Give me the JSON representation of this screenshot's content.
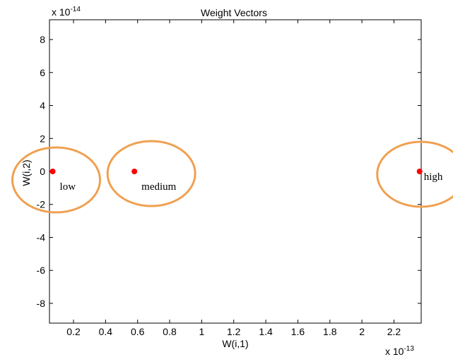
{
  "chart_data": {
    "type": "scatter",
    "title": "Weight Vectors",
    "xlabel": "W(i,1)",
    "ylabel": "W(i,2)",
    "x_exponent": "x 10",
    "x_exponent_power": "-13",
    "y_exponent": "x 10",
    "y_exponent_power": "-14",
    "xlim": [
      0.05,
      2.37
    ],
    "ylim": [
      -9.2,
      9.2
    ],
    "xticks": [
      "0.2",
      "0.4",
      "0.6",
      "0.8",
      "1",
      "1.2",
      "1.4",
      "1.6",
      "1.8",
      "2",
      "2.2"
    ],
    "yticks": [
      "8",
      "6",
      "4",
      "2",
      "0",
      "-2",
      "-4",
      "-6",
      "-8"
    ],
    "points": [
      {
        "label": "low",
        "x": 0.07,
        "y": 0
      },
      {
        "label": "medium",
        "x": 0.58,
        "y": 0
      },
      {
        "label": "high",
        "x": 2.36,
        "y": 0
      }
    ],
    "marker_color": "#ff0000",
    "circle_color": "#f0a050",
    "grid": false
  }
}
